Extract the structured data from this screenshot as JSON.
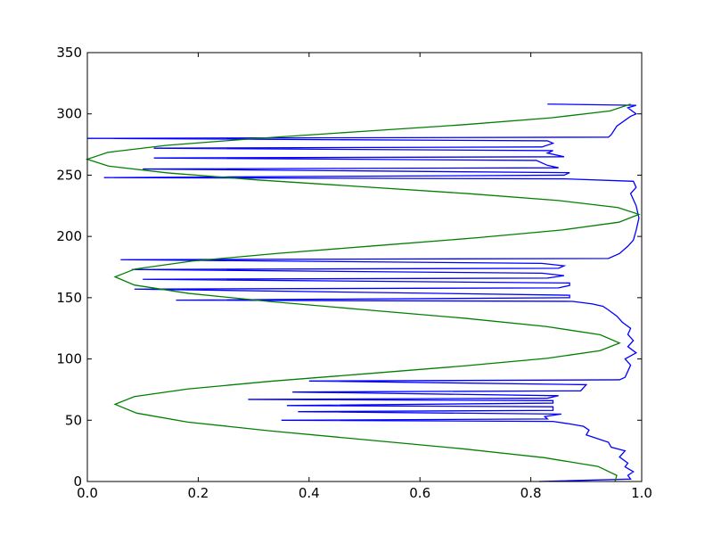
{
  "chart_data": {
    "type": "line",
    "xlim": [
      0,
      1
    ],
    "ylim": [
      0,
      350
    ],
    "xticks": [
      {
        "value": 0,
        "label": "0.0"
      },
      {
        "value": 0.2,
        "label": "0.2"
      },
      {
        "value": 0.4,
        "label": "0.4"
      },
      {
        "value": 0.6,
        "label": "0.6"
      },
      {
        "value": 0.8,
        "label": "0.8"
      },
      {
        "value": 1,
        "label": "1.0"
      }
    ],
    "yticks": [
      0,
      50,
      100,
      150,
      200,
      250,
      300,
      350
    ],
    "grid": false,
    "series": [
      {
        "color": "#0000ff",
        "x": [
          0.815,
          0.98,
          0.975,
          0.985,
          0.97,
          0.975,
          0.96,
          0.97,
          0.945,
          0.94,
          0.92,
          0.9,
          0.905,
          0.895,
          0.87,
          0.84,
          0.35,
          0.83,
          0.825,
          0.855,
          0.38,
          0.84,
          0.84,
          0.36,
          0.84,
          0.84,
          0.29,
          0.83,
          0.85,
          0.37,
          0.89,
          0.9,
          0.4,
          0.96,
          0.97,
          0.975,
          0.98,
          0.97,
          0.99,
          0.975,
          0.985,
          0.975,
          0.98,
          0.965,
          0.955,
          0.94,
          0.93,
          0.91,
          0.875,
          0.16,
          0.87,
          0.87,
          0.085,
          0.85,
          0.87,
          0.87,
          0.1,
          0.83,
          0.86,
          0.82,
          0.08,
          0.85,
          0.86,
          0.82,
          0.06,
          0.94,
          0.96,
          0.975,
          0.985,
          0.99,
          0.995,
          0.99,
          0.985,
          0.98,
          0.99,
          0.985,
          0.86,
          0.03,
          0.86,
          0.87,
          0.1,
          0.85,
          0.83,
          0.81,
          0.12,
          0.86,
          0.83,
          0.84,
          0.12,
          0.82,
          0.84,
          0.83,
          0.0,
          0.94,
          0.945,
          0.955,
          0.98,
          0.99,
          0.975,
          0.99,
          0.83
        ],
        "y": [
          0,
          2,
          5,
          8,
          12,
          15,
          20,
          25,
          28,
          32,
          35,
          38,
          42,
          45,
          47,
          49,
          50,
          51,
          53,
          55,
          57,
          58,
          61,
          62,
          64,
          66,
          67,
          68,
          70,
          73,
          74,
          79,
          82,
          83,
          85,
          90,
          95,
          100,
          105,
          110,
          115,
          120,
          125,
          130,
          135,
          140,
          143,
          145,
          147,
          148,
          150,
          152,
          157,
          158,
          160,
          162,
          165,
          166,
          168,
          170,
          173,
          174,
          176,
          178,
          181,
          182,
          186,
          192,
          197,
          205,
          215,
          225,
          230,
          235,
          240,
          245,
          247,
          248,
          250,
          252,
          255,
          256,
          258,
          262,
          264,
          265,
          268,
          270,
          272,
          273,
          276,
          278,
          280,
          281,
          283,
          290,
          298,
          300,
          305,
          307,
          308
        ]
      },
      {
        "color": "#008000",
        "x": [
          0.952,
          0.955,
          0.921,
          0.823,
          0.675,
          0.503,
          0.33,
          0.181,
          0.089,
          0.05,
          0.085,
          0.181,
          0.331,
          0.505,
          0.679,
          0.829,
          0.925,
          0.96,
          0.925,
          0.827,
          0.679,
          0.505,
          0.331,
          0.183,
          0.085,
          0.05,
          0.086,
          0.188,
          0.342,
          0.523,
          0.703,
          0.857,
          0.959,
          0.995,
          0.957,
          0.85,
          0.688,
          0.498,
          0.307,
          0.145,
          0.038,
          0,
          0.037,
          0.143,
          0.303,
          0.49,
          0.677,
          0.837,
          0.943,
          0.98
        ],
        "y": [
          0,
          5,
          12.3,
          19.5,
          26.8,
          34,
          41.3,
          48.5,
          55.8,
          63,
          69.3,
          75.5,
          81.8,
          88,
          94.3,
          100.5,
          106.8,
          113,
          119.8,
          126.5,
          133.3,
          140,
          146.8,
          153.5,
          160.3,
          167,
          173.4,
          179.8,
          186.1,
          192.5,
          198.9,
          205.3,
          211.6,
          218,
          223.6,
          229.3,
          234.9,
          240.5,
          246.1,
          251.8,
          257.4,
          263,
          268.6,
          274.3,
          279.9,
          285.5,
          291.1,
          296.8,
          302.4,
          308
        ]
      }
    ]
  }
}
